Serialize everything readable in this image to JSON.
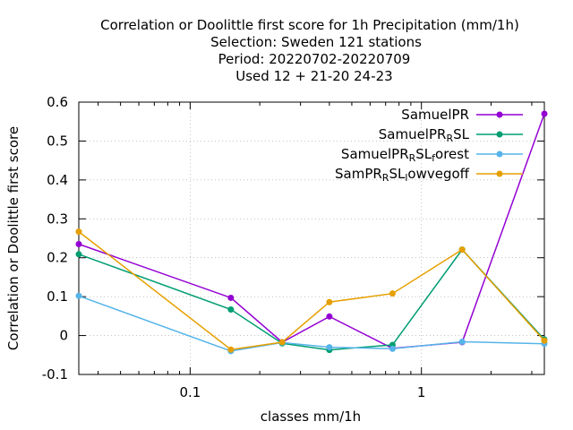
{
  "chart_data": {
    "type": "line",
    "title_lines": [
      "Correlation or Doolittle first score  for 1h Precipitation (mm/1h)",
      "Selection: Sweden    121 stations",
      "Period: 20220702-20220709",
      "Used  12 + 21-20 24-23"
    ],
    "xlabel": "classes mm/1h",
    "ylabel": "Correlation or Doolittle first score",
    "xscale": "log",
    "xlim": [
      0.033,
      3.4
    ],
    "ylim": [
      -0.1,
      0.6
    ],
    "xticks": [
      {
        "value": 0.1,
        "label": "0.1"
      },
      {
        "value": 1,
        "label": "1"
      }
    ],
    "yticks": [
      {
        "value": -0.1,
        "label": "-0.1"
      },
      {
        "value": 0,
        "label": "0"
      },
      {
        "value": 0.1,
        "label": "0.1"
      },
      {
        "value": 0.2,
        "label": "0.2"
      },
      {
        "value": 0.3,
        "label": "0.3"
      },
      {
        "value": 0.4,
        "label": "0.4"
      },
      {
        "value": 0.5,
        "label": "0.5"
      },
      {
        "value": 0.6,
        "label": "0.6"
      }
    ],
    "grid": true,
    "legend_position": "top-right",
    "x": [
      0.033,
      0.15,
      0.25,
      0.4,
      0.75,
      1.5,
      3.4
    ],
    "series": [
      {
        "name": "SamuelPR",
        "legend": [
          "SamuelPR"
        ],
        "color": "#9400d3",
        "values": [
          0.235,
          0.097,
          -0.017,
          0.049,
          -0.033,
          -0.017,
          0.57
        ]
      },
      {
        "name": "SamuelPR_RSL",
        "legend": [
          "SamuelPR",
          "R",
          "SL"
        ],
        "color": "#009e73",
        "values": [
          0.209,
          0.067,
          -0.02,
          -0.037,
          -0.024,
          0.221,
          -0.01
        ]
      },
      {
        "name": "SamuelPR_RSL_forest",
        "legend": [
          "SamuelPR",
          "R",
          "SL",
          "f",
          "orest"
        ],
        "color": "#56b4e9",
        "values": [
          0.102,
          -0.04,
          -0.018,
          -0.03,
          -0.034,
          -0.016,
          -0.021
        ]
      },
      {
        "name": "SamPR_RSL_lowvegoff",
        "legend": [
          "SamPR",
          "R",
          "SL",
          "l",
          "owvegoff"
        ],
        "color": "#e69f00",
        "values": [
          0.267,
          -0.036,
          -0.017,
          0.086,
          0.108,
          0.221,
          -0.013
        ]
      }
    ]
  }
}
